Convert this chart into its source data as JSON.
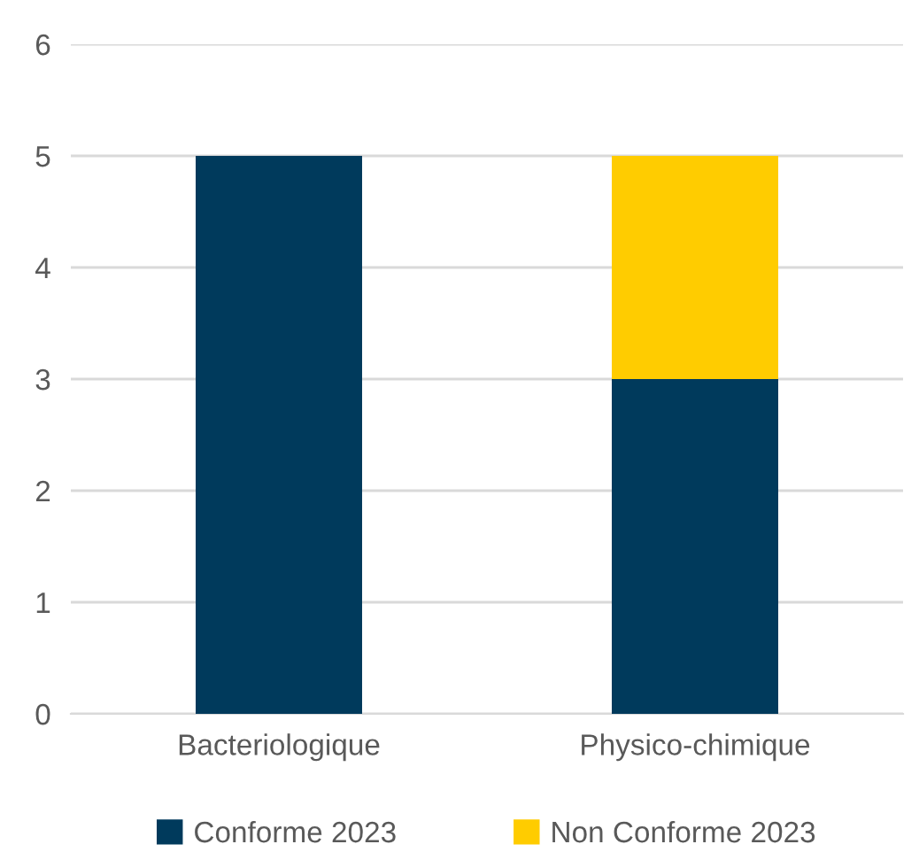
{
  "chart_data": {
    "type": "bar",
    "stacked": true,
    "categories": [
      "Bacteriologique",
      "Physico-chimique"
    ],
    "series": [
      {
        "name": "Conforme 2023",
        "color": "#003a5c",
        "values": [
          5,
          3
        ]
      },
      {
        "name": "Non Conforme 2023",
        "color": "#ffcc00",
        "values": [
          null,
          2
        ]
      }
    ],
    "ylim": [
      0,
      6
    ],
    "yticks": [
      0,
      1,
      2,
      3,
      4,
      5,
      6
    ],
    "grid": "y",
    "legend": "bottom"
  }
}
